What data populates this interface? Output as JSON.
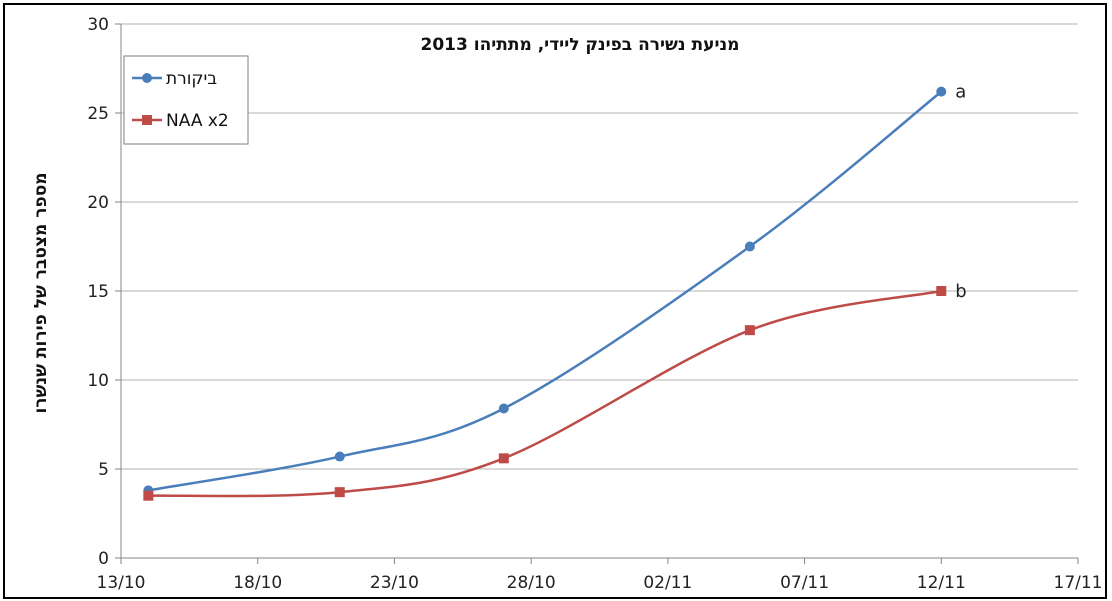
{
  "chart_data": {
    "type": "line",
    "title": "מניעת נשירה בפינק ליידי, מתתיהו 2013",
    "ylabel": "מספר מצטבר של פירות שנשרו",
    "xlabel": "",
    "ylim": [
      0,
      30
    ],
    "yticks": [
      0,
      5,
      10,
      15,
      20,
      25,
      30
    ],
    "xlim": [
      "2013-10-13",
      "2013-11-17"
    ],
    "xticks": [
      "13/10",
      "18/10",
      "23/10",
      "28/10",
      "02/11",
      "07/11",
      "12/11",
      "17/11"
    ],
    "xtick_dates": [
      "2013-10-13",
      "2013-10-18",
      "2013-10-23",
      "2013-10-28",
      "2013-11-02",
      "2013-11-07",
      "2013-11-12",
      "2013-11-17"
    ],
    "grid": true,
    "legend_position": "top-left",
    "series": [
      {
        "name": "ביקורת",
        "color": "#4a7ebb",
        "marker": "circle",
        "x": [
          "2013-10-14",
          "2013-10-21",
          "2013-10-27",
          "2013-11-05",
          "2013-11-12"
        ],
        "y": [
          3.8,
          5.7,
          8.4,
          17.5,
          26.2
        ],
        "end_label": "a"
      },
      {
        "name": "NAA x2",
        "color": "#be4b48",
        "marker": "square",
        "x": [
          "2013-10-14",
          "2013-10-21",
          "2013-10-27",
          "2013-11-05",
          "2013-11-12"
        ],
        "y": [
          3.5,
          3.7,
          5.6,
          12.8,
          15.0
        ],
        "end_label": "b"
      }
    ]
  }
}
